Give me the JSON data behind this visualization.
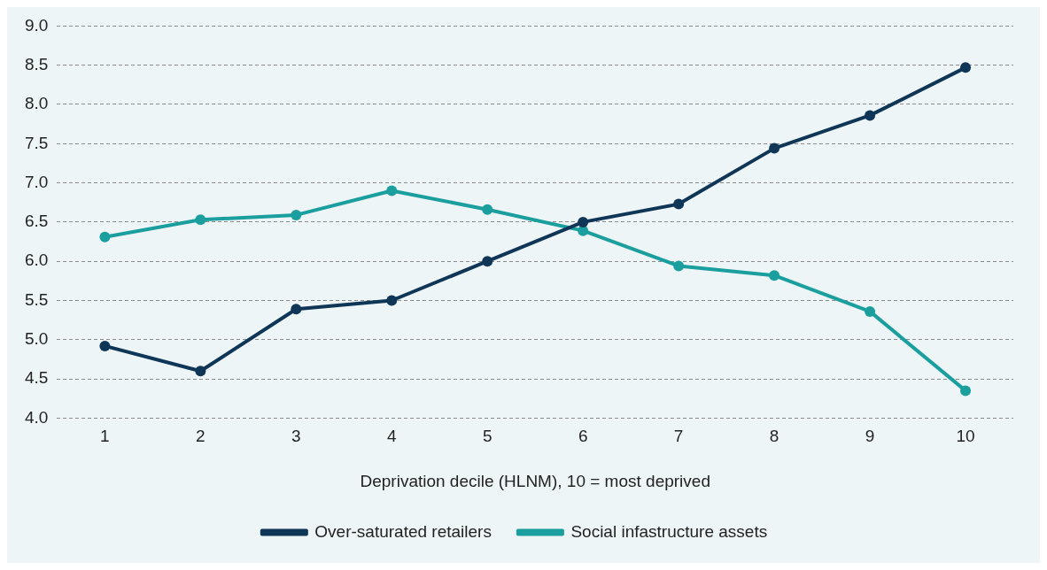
{
  "chart_data": {
    "type": "line",
    "xlabel": "Deprivation decile (HLNM), 10 = most deprived",
    "categories": [
      "1",
      "2",
      "3",
      "4",
      "5",
      "6",
      "7",
      "8",
      "9",
      "10"
    ],
    "series": [
      {
        "name": "Over-saturated retailers",
        "color": "#0f3557",
        "values": [
          4.92,
          4.6,
          5.39,
          5.5,
          6.0,
          6.5,
          6.73,
          7.44,
          7.86,
          8.47
        ]
      },
      {
        "name": "Social infastructure assets",
        "color": "#1a9e9e",
        "values": [
          6.31,
          6.53,
          6.59,
          6.9,
          6.66,
          6.39,
          5.94,
          5.82,
          5.36,
          4.35
        ]
      }
    ],
    "ylim": [
      4,
      9
    ],
    "yticks": [
      {
        "value": 4,
        "label": "4.0"
      },
      {
        "value": 4.5,
        "label": "4.5"
      },
      {
        "value": 5,
        "label": "5.0"
      },
      {
        "value": 5.5,
        "label": "5.5"
      },
      {
        "value": 6,
        "label": "6.0"
      },
      {
        "value": 6.5,
        "label": "6.5"
      },
      {
        "value": 7,
        "label": "7.0"
      },
      {
        "value": 7.5,
        "label": "7.5"
      },
      {
        "value": 8,
        "label": "8.0"
      },
      {
        "value": 8.5,
        "label": "8.5"
      },
      {
        "value": 9,
        "label": "9.0"
      }
    ],
    "grid": "y",
    "legend": "bottom",
    "marker": "circle",
    "line_style": "solid"
  }
}
